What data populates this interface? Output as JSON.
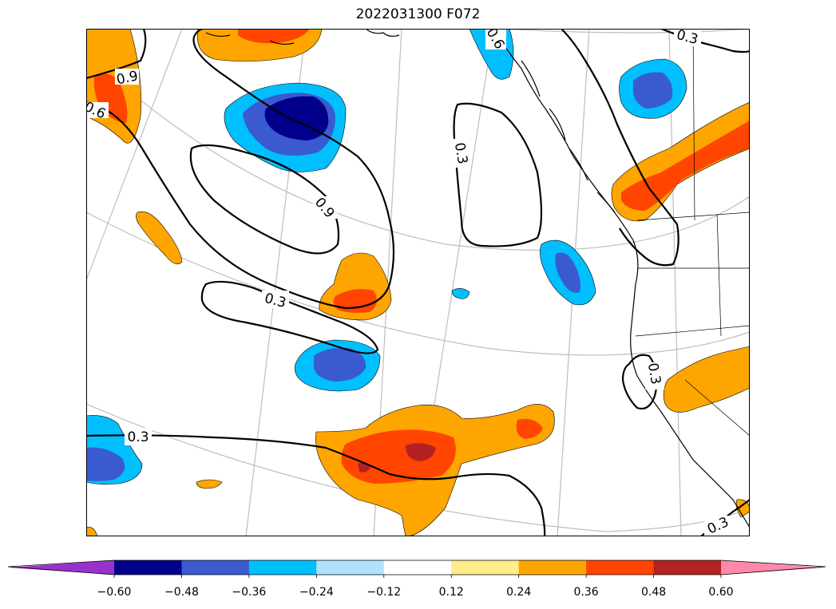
{
  "title": "2022031300 F072",
  "colorbar": {
    "levels": [
      -0.6,
      -0.48,
      -0.36,
      -0.24,
      -0.12,
      0.12,
      0.24,
      0.36,
      0.48,
      0.6
    ],
    "tick_labels": [
      "−0.60",
      "−0.48",
      "−0.36",
      "−0.24",
      "−0.12",
      "0.12",
      "0.24",
      "0.36",
      "0.48",
      "0.60"
    ],
    "colors": [
      "#9932cc",
      "#00008b",
      "#3a5bd0",
      "#00bfff",
      "#b0e2ff",
      "#ffffff",
      "#ffec8b",
      "#ffa500",
      "#ff4500",
      "#b22222",
      "#ff88aa"
    ],
    "extend": "both"
  },
  "contour_labels": [
    "0.9",
    "0.6",
    "0.3",
    "0.9",
    "0.3",
    "0.6",
    "0.3",
    "0.3",
    "0.3",
    "0.3"
  ],
  "colors": {
    "deep_negative": "#00008b",
    "mid_negative": "#3a5bd0",
    "light_negative": "#00bfff",
    "light_positive": "#ffa500",
    "mid_positive": "#ff4500",
    "strong_positive": "#b22222",
    "graticule": "#bdbdbd",
    "contour": "#000000"
  }
}
